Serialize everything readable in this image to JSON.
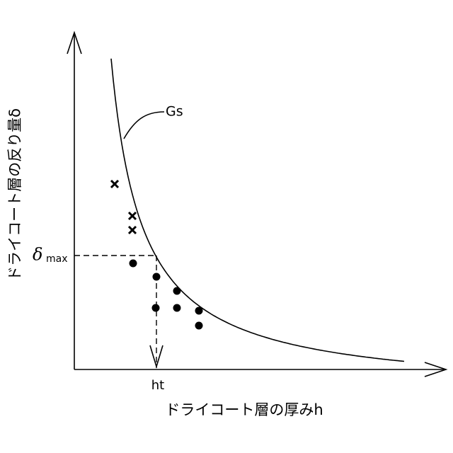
{
  "y_axis_label": "ドライコート層の反り量δ",
  "x_axis_label": "ドライコート層の厚みh",
  "curve_label": "Gs",
  "threshold_label": {
    "symbol": "δ",
    "subscript": "max"
  },
  "x_marker_label": "ht"
}
